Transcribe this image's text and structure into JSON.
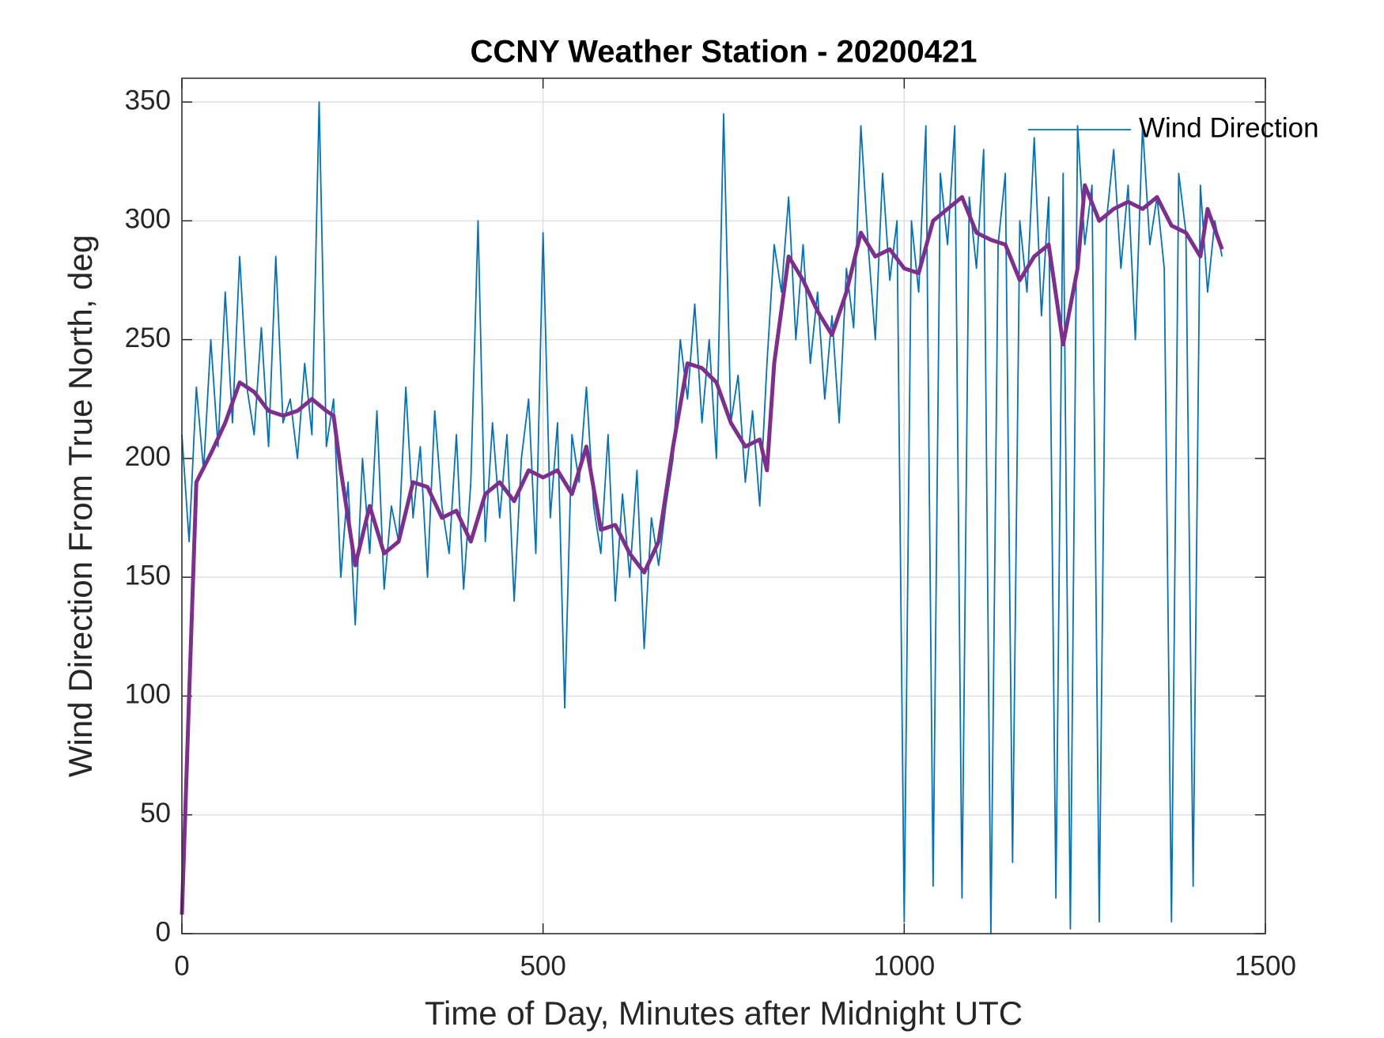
{
  "chart_data": {
    "type": "line",
    "title": "CCNY Weather Station - 20200421",
    "x_label": "Time of Day, Minutes after Midnight UTC",
    "y_label": "Wind Direction From True North, deg",
    "xlim": [
      0,
      1500
    ],
    "xticks": [
      0,
      500,
      1000,
      1500
    ],
    "ylim": [
      0,
      360
    ],
    "yticks": [
      0,
      50,
      100,
      150,
      200,
      250,
      300,
      350
    ],
    "grid": true,
    "legend": "upper right",
    "series": [
      {
        "name": "Wind Direction",
        "color": "#0072bd",
        "x": [
          0,
          10,
          20,
          30,
          40,
          50,
          60,
          70,
          80,
          90,
          100,
          110,
          120,
          130,
          140,
          150,
          160,
          170,
          180,
          190,
          200,
          210,
          220,
          230,
          240,
          250,
          260,
          270,
          280,
          290,
          300,
          310,
          320,
          330,
          340,
          350,
          360,
          370,
          380,
          390,
          400,
          410,
          420,
          430,
          440,
          450,
          460,
          470,
          480,
          490,
          500,
          510,
          520,
          530,
          540,
          550,
          560,
          570,
          580,
          590,
          600,
          610,
          620,
          630,
          640,
          650,
          660,
          670,
          680,
          690,
          700,
          710,
          720,
          730,
          740,
          750,
          760,
          770,
          780,
          790,
          800,
          810,
          820,
          830,
          840,
          850,
          860,
          870,
          880,
          890,
          900,
          910,
          920,
          930,
          940,
          950,
          960,
          970,
          980,
          990,
          1000,
          1010,
          1020,
          1030,
          1040,
          1050,
          1060,
          1070,
          1080,
          1090,
          1100,
          1110,
          1120,
          1130,
          1140,
          1150,
          1160,
          1170,
          1180,
          1190,
          1200,
          1210,
          1220,
          1230,
          1240,
          1250,
          1260,
          1270,
          1280,
          1290,
          1300,
          1310,
          1320,
          1330,
          1340,
          1350,
          1360,
          1370,
          1380,
          1390,
          1400,
          1410,
          1420,
          1430,
          1440
        ],
        "values": [
          210,
          165,
          230,
          195,
          250,
          205,
          270,
          215,
          285,
          230,
          210,
          255,
          205,
          285,
          215,
          225,
          200,
          240,
          210,
          350,
          205,
          225,
          150,
          190,
          130,
          200,
          160,
          220,
          145,
          180,
          165,
          230,
          175,
          205,
          150,
          220,
          180,
          160,
          210,
          145,
          190,
          300,
          165,
          215,
          175,
          210,
          140,
          200,
          225,
          160,
          295,
          175,
          215,
          95,
          210,
          190,
          230,
          180,
          160,
          210,
          140,
          185,
          150,
          195,
          120,
          175,
          155,
          180,
          200,
          250,
          225,
          265,
          215,
          250,
          200,
          345,
          215,
          235,
          190,
          220,
          180,
          240,
          290,
          270,
          310,
          250,
          290,
          240,
          270,
          225,
          260,
          215,
          280,
          255,
          340,
          290,
          250,
          320,
          275,
          300,
          5,
          300,
          270,
          340,
          20,
          320,
          290,
          340,
          15,
          310,
          280,
          330,
          0,
          290,
          320,
          30,
          300,
          270,
          335,
          260,
          310,
          15,
          320,
          2,
          340,
          290,
          315,
          5,
          300,
          330,
          280,
          315,
          250,
          340,
          290,
          310,
          280,
          5,
          320,
          295,
          20,
          315,
          270,
          300,
          285
        ]
      },
      {
        "color": "#7e2f8e",
        "x": [
          0,
          10,
          20,
          40,
          60,
          80,
          100,
          120,
          140,
          160,
          180,
          200,
          210,
          220,
          240,
          260,
          280,
          300,
          320,
          340,
          360,
          380,
          400,
          420,
          440,
          460,
          480,
          500,
          520,
          540,
          560,
          580,
          600,
          620,
          640,
          660,
          680,
          700,
          720,
          740,
          760,
          780,
          800,
          810,
          820,
          840,
          860,
          880,
          900,
          920,
          940,
          960,
          980,
          1000,
          1020,
          1040,
          1060,
          1080,
          1100,
          1120,
          1140,
          1160,
          1180,
          1200,
          1220,
          1240,
          1250,
          1270,
          1290,
          1310,
          1330,
          1350,
          1370,
          1390,
          1410,
          1420,
          1440
        ],
        "values": [
          8,
          100,
          190,
          202,
          215,
          232,
          228,
          220,
          218,
          220,
          225,
          220,
          218,
          195,
          155,
          180,
          160,
          165,
          190,
          188,
          175,
          178,
          165,
          185,
          190,
          182,
          195,
          192,
          195,
          185,
          205,
          170,
          172,
          160,
          152,
          165,
          205,
          240,
          238,
          232,
          215,
          205,
          208,
          195,
          240,
          285,
          275,
          262,
          252,
          270,
          295,
          285,
          288,
          280,
          278,
          300,
          305,
          310,
          295,
          292,
          290,
          275,
          285,
          290,
          248,
          280,
          315,
          300,
          305,
          308,
          305,
          310,
          298,
          295,
          285,
          305,
          288
        ]
      }
    ]
  }
}
